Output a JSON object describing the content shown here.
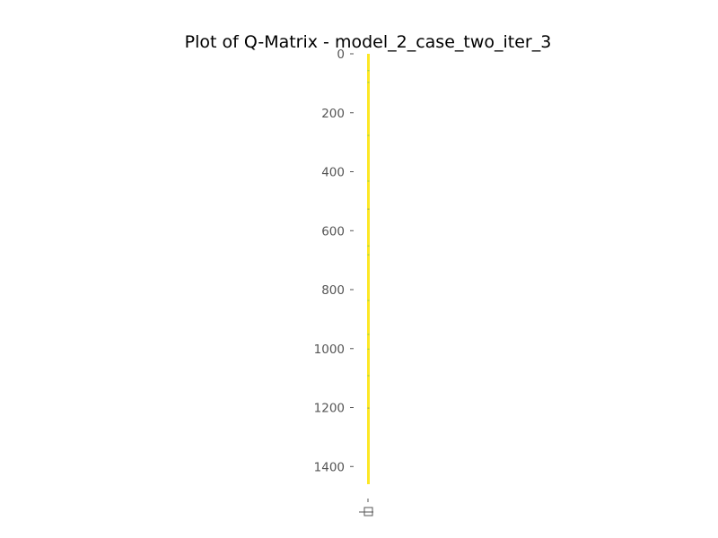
{
  "chart_data": {
    "type": "heatmap",
    "title": "Plot of Q-Matrix - model_2_case_two_iter_3",
    "xlabel": "",
    "ylabel": "",
    "ylim": [
      0,
      1460
    ],
    "y_ticks": [
      "0",
      "200",
      "400",
      "600",
      "800",
      "1000",
      "1200",
      "1400"
    ],
    "x_ticks": [],
    "grid": false,
    "colormap": "viridis",
    "colors": {
      "cell_high": "#fde725",
      "cell_mid": "#35b779",
      "cell_low": "#31688e",
      "text": "#555555",
      "title": "#000000"
    },
    "matrix_rows": 1460,
    "matrix_cols": 1,
    "values_summary": "nearly all cells at maximum (yellow) with sparse darker cells"
  }
}
